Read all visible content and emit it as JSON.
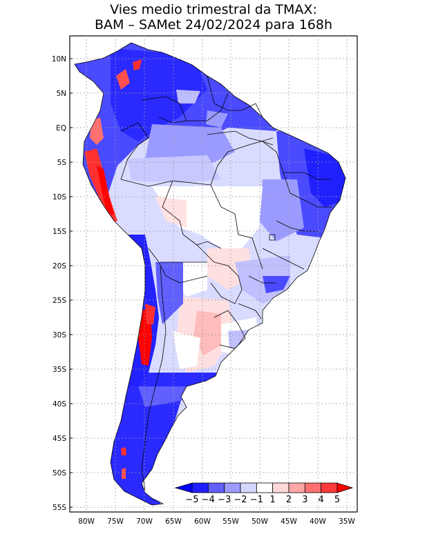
{
  "title": {
    "line1": "Vies medio trimestral da TMAX:",
    "line2": "BAM – SAMet 24/02/2024  para 168h"
  },
  "map": {
    "lon_ticks": [
      "80W",
      "75W",
      "70W",
      "65W",
      "60W",
      "55W",
      "50W",
      "45W",
      "40W",
      "35W"
    ],
    "lat_ticks": [
      "10N",
      "5N",
      "EQ",
      "5S",
      "10S",
      "15S",
      "20S",
      "25S",
      "30S",
      "35S",
      "40S",
      "45S",
      "50S",
      "55S"
    ],
    "land_base_color": "#d8dcff",
    "ocean_color": "#ffffff"
  },
  "colorbar": {
    "labels": [
      "−5",
      "−4",
      "−3",
      "−2",
      "−1",
      "1",
      "2",
      "3",
      "4",
      "5"
    ],
    "colors": [
      "#0000ff",
      "#2020ff",
      "#6060ff",
      "#9b9bff",
      "#d6d6ff",
      "#ffffff",
      "#ffd9d9",
      "#ffa6a6",
      "#ff7070",
      "#ff3a3a",
      "#ff0000"
    ]
  }
}
